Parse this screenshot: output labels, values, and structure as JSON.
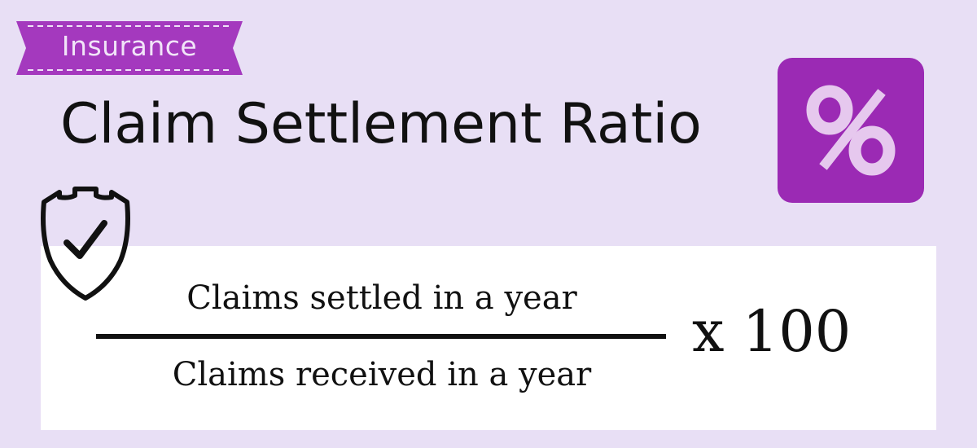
{
  "tag": {
    "label": "Insurance"
  },
  "title": "Claim Settlement Ratio",
  "icons": {
    "percent": "percent-icon",
    "shield": "shield-check-icon"
  },
  "formula": {
    "numerator": "Claims settled in a year",
    "denominator": "Claims received in a year",
    "multiplier": "x 100"
  },
  "colors": {
    "background": "#e8dff5",
    "accent": "#9b2ab4",
    "tag_fill": "#a439be",
    "card": "#ffffff",
    "text": "#111111"
  }
}
